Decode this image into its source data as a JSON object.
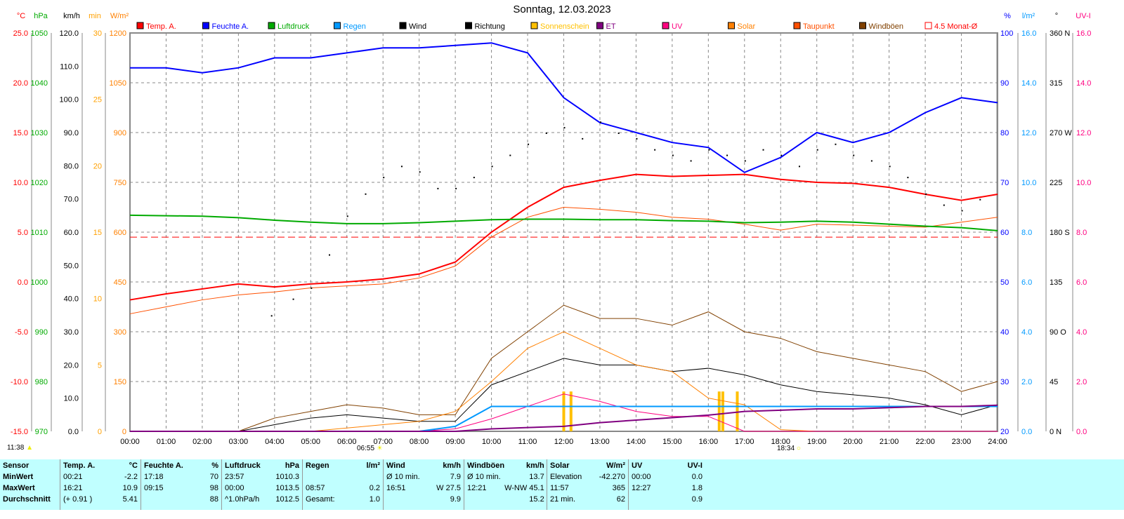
{
  "title": "Sonntag, 12.03.2023",
  "legend": [
    {
      "label": "Temp. A.",
      "color": "#ff0000"
    },
    {
      "label": "Feuchte A.",
      "color": "#0000ff"
    },
    {
      "label": "Luftdruck",
      "color": "#00aa00"
    },
    {
      "label": "Regen",
      "color": "#0099ff"
    },
    {
      "label": "Wind",
      "color": "#000000"
    },
    {
      "label": "Richtung",
      "color": "#000000"
    },
    {
      "label": "Sonnenschein",
      "color": "#ffc000"
    },
    {
      "label": "ET",
      "color": "#800080"
    },
    {
      "label": "UV",
      "color": "#ff0080"
    },
    {
      "label": "Solar",
      "color": "#ff8000"
    },
    {
      "label": "Taupunkt",
      "color": "#ff5000"
    },
    {
      "label": "Windböen",
      "color": "#804000"
    },
    {
      "label": "4.5 Monat-Ø",
      "color": "#ff0000"
    }
  ],
  "sun": {
    "left": "11:38",
    "sunrise": "06:55",
    "sunset": "18:34"
  },
  "chart_data": {
    "type": "line",
    "title": "Sonntag, 12.03.2023",
    "x_ticks": [
      "00:00",
      "01:00",
      "02:00",
      "03:00",
      "04:00",
      "05:00",
      "06:00",
      "07:00",
      "08:00",
      "09:00",
      "10:00",
      "11:00",
      "12:00",
      "13:00",
      "14:00",
      "15:00",
      "16:00",
      "17:00",
      "18:00",
      "19:00",
      "20:00",
      "21:00",
      "22:00",
      "23:00",
      "24:00"
    ],
    "axes": {
      "temp": {
        "unit": "°C",
        "range": [
          -15,
          25
        ],
        "ticks": [
          "25.0",
          "20.0",
          "15.0",
          "10.0",
          "5.0",
          "0.0",
          "-5.0",
          "-10.0",
          "-15.0"
        ],
        "color": "#ff0000"
      },
      "pressure": {
        "unit": "hPa",
        "range": [
          970,
          1050
        ],
        "ticks": [
          "1050",
          "1040",
          "1030",
          "1020",
          "1010",
          "1000",
          "990",
          "980",
          "970"
        ],
        "color": "#00aa00"
      },
      "wind": {
        "unit": "km/h",
        "range": [
          0,
          120
        ],
        "ticks": [
          "120.0",
          "110.0",
          "100.0",
          "90.0",
          "80.0",
          "70.0",
          "60.0",
          "50.0",
          "40.0",
          "30.0",
          "20.0",
          "10.0",
          "0.0"
        ],
        "color": "#000000"
      },
      "sunshine": {
        "unit": "min",
        "range": [
          0,
          30
        ],
        "ticks": [
          "30",
          "25",
          "20",
          "15",
          "10",
          "5",
          "0"
        ],
        "color": "#ffa000"
      },
      "solar": {
        "unit": "W/m²",
        "range": [
          0,
          1200
        ],
        "ticks": [
          "1200",
          "1050",
          "900",
          "750",
          "600",
          "450",
          "300",
          "150",
          "0"
        ],
        "color": "#ff8000"
      },
      "humidity": {
        "unit": "%",
        "range": [
          20,
          100
        ],
        "ticks": [
          "100",
          "90",
          "80",
          "70",
          "60",
          "50",
          "40",
          "30",
          "20"
        ],
        "color": "#0000ff"
      },
      "rain": {
        "unit": "l/m²",
        "range": [
          0,
          16
        ],
        "ticks": [
          "16.0",
          "14.0",
          "12.0",
          "10.0",
          "8.0",
          "6.0",
          "4.0",
          "2.0",
          "0.0"
        ],
        "color": "#0099ff"
      },
      "direction": {
        "unit": "°",
        "range": [
          0,
          360
        ],
        "ticks": [
          "360 N",
          "315",
          "270 W",
          "225",
          "180 S",
          "135",
          "90 O",
          "45",
          "0 N"
        ],
        "color": "#000000"
      },
      "uv": {
        "unit": "UV-I",
        "range": [
          0,
          16
        ],
        "ticks": [
          "16.0",
          "14.0",
          "12.0",
          "10.0",
          "8.0",
          "6.0",
          "4.0",
          "2.0",
          "0.0"
        ],
        "color": "#ff0080"
      }
    },
    "hours": [
      0,
      1,
      2,
      3,
      4,
      5,
      6,
      7,
      8,
      9,
      10,
      11,
      12,
      13,
      14,
      15,
      16,
      17,
      18,
      19,
      20,
      21,
      22,
      23,
      24
    ],
    "series": [
      {
        "name": "Temp. A.",
        "axis": "temp",
        "values": [
          -1.8,
          -1.2,
          -0.7,
          -0.2,
          -0.5,
          -0.2,
          0,
          0.3,
          0.8,
          2.0,
          5.0,
          7.5,
          9.5,
          10.2,
          10.8,
          10.6,
          10.7,
          10.8,
          10.3,
          10.0,
          9.9,
          9.5,
          8.8,
          8.2,
          8.8
        ]
      },
      {
        "name": "Taupunkt",
        "axis": "temp",
        "values": [
          -3.2,
          -2.5,
          -1.8,
          -1.3,
          -1.0,
          -0.6,
          -0.4,
          -0.2,
          0.4,
          1.6,
          4.5,
          6.5,
          7.5,
          7.3,
          7.0,
          6.5,
          6.3,
          5.8,
          5.2,
          5.8,
          5.7,
          5.6,
          5.5,
          6.0,
          6.5
        ]
      },
      {
        "name": "Feuchte A.",
        "axis": "humidity",
        "values": [
          93,
          93,
          92,
          93,
          95,
          95,
          96,
          97,
          97,
          97.5,
          98,
          96,
          87,
          82,
          80,
          78,
          77,
          72,
          75,
          80,
          78,
          80,
          84,
          87,
          86
        ]
      },
      {
        "name": "Luftdruck",
        "axis": "pressure",
        "values": [
          1013.4,
          1013.3,
          1013.2,
          1012.9,
          1012.4,
          1012.0,
          1011.7,
          1011.7,
          1011.9,
          1012.2,
          1012.5,
          1012.6,
          1012.6,
          1012.5,
          1012.5,
          1012.3,
          1012.2,
          1011.9,
          1012.0,
          1012.2,
          1012.0,
          1011.6,
          1011.2,
          1010.9,
          1010.3
        ]
      },
      {
        "name": "Wind",
        "axis": "wind",
        "values": [
          0,
          0,
          0,
          0,
          2,
          4,
          5,
          4,
          3,
          3,
          14,
          18,
          22,
          20,
          20,
          18,
          19,
          17,
          14,
          12,
          11,
          10,
          8,
          5,
          8
        ]
      },
      {
        "name": "Windböen",
        "axis": "wind",
        "values": [
          0,
          0,
          0,
          0,
          4,
          6,
          8,
          7,
          5,
          5,
          22,
          30,
          38,
          34,
          34,
          32,
          36,
          30,
          28,
          24,
          22,
          20,
          18,
          12,
          15
        ]
      },
      {
        "name": "Solar",
        "axis": "solar",
        "values": [
          0,
          0,
          0,
          0,
          0,
          0,
          10,
          20,
          30,
          60,
          150,
          250,
          300,
          250,
          200,
          180,
          100,
          80,
          5,
          0,
          0,
          0,
          0,
          0,
          0
        ]
      },
      {
        "name": "UV",
        "axis": "uv",
        "values": [
          0,
          0,
          0,
          0,
          0,
          0,
          0,
          0,
          0,
          0.1,
          0.5,
          1.0,
          1.5,
          1.2,
          0.8,
          0.6,
          0.6,
          0,
          0,
          0,
          0,
          0,
          0,
          0,
          0
        ]
      },
      {
        "name": "Regen",
        "axis": "rain",
        "values": [
          0,
          0,
          0,
          0,
          0,
          0,
          0,
          0,
          0,
          0.2,
          1.0,
          1.0,
          1.0,
          1.0,
          1.0,
          1.0,
          1.0,
          1.0,
          1.0,
          1.0,
          1.0,
          1.0,
          1.0,
          1.0,
          1.0
        ]
      },
      {
        "name": "ET",
        "axis": "rain",
        "values": [
          0,
          0,
          0,
          0,
          0,
          0,
          0,
          0,
          0,
          0,
          0.1,
          0.15,
          0.2,
          0.35,
          0.45,
          0.55,
          0.65,
          0.8,
          0.85,
          0.9,
          0.9,
          0.95,
          1.0,
          1.0,
          1.05
        ]
      }
    ],
    "direction_points": {
      "hours": [
        3.9,
        4.5,
        5.0,
        5.5,
        6.0,
        6.5,
        7.0,
        7.5,
        8.0,
        8.5,
        9.0,
        9.5,
        10.0,
        10.5,
        11.0,
        11.5,
        12.0,
        12.5,
        13.0,
        13.5,
        14.0,
        14.5,
        15.0,
        15.5,
        16.0,
        16.5,
        17.0,
        17.5,
        18.0,
        18.5,
        19.0,
        19.5,
        20.0,
        20.5,
        21.0,
        21.5,
        22.0,
        22.5,
        23.0,
        23.5
      ],
      "values": [
        105,
        120,
        130,
        160,
        195,
        215,
        230,
        240,
        235,
        220,
        220,
        230,
        240,
        250,
        260,
        270,
        275,
        265,
        280,
        270,
        265,
        255,
        250,
        245,
        255,
        250,
        245,
        255,
        250,
        240,
        255,
        260,
        250,
        245,
        240,
        230,
        215,
        205,
        200,
        210
      ]
    },
    "sunshine_bars": {
      "hours": [
        12.0,
        12.2,
        16.3,
        16.4,
        16.8
      ],
      "values": [
        3,
        3,
        3,
        3,
        3
      ]
    },
    "reference_line": {
      "name": "4.5 Monat-Ø",
      "axis": "temp",
      "value": 4.5
    }
  },
  "table": {
    "columns": [
      {
        "h": [
          "Sensor",
          ""
        ],
        "rows": [
          [
            "MinWert",
            ""
          ],
          [
            "MaxWert",
            ""
          ],
          [
            "Durchschnitt",
            ""
          ]
        ],
        "w": 85
      },
      {
        "h": [
          "Temp. A.",
          "°C"
        ],
        "rows": [
          [
            "00:21",
            "-2.2"
          ],
          [
            "16:21",
            "10.9"
          ],
          [
            "(+ 0.91 )",
            "5.41"
          ]
        ],
        "w": 115
      },
      {
        "h": [
          "Feuchte A.",
          "%"
        ],
        "rows": [
          [
            "17:18",
            "70"
          ],
          [
            "09:15",
            "98"
          ],
          [
            "",
            "88"
          ]
        ],
        "w": 115
      },
      {
        "h": [
          "Luftdruck",
          "hPa"
        ],
        "rows": [
          [
            "23:57",
            "1010.3"
          ],
          [
            "00:00",
            "1013.5"
          ],
          [
            "^1.0hPa/h",
            "1012.5"
          ]
        ],
        "w": 115
      },
      {
        "h": [
          "Regen",
          "l/m²"
        ],
        "rows": [
          [
            "",
            ""
          ],
          [
            "08:57",
            "0.2"
          ],
          [
            "Gesamt:",
            "1.0"
          ]
        ],
        "w": 115
      },
      {
        "h": [
          "Wind",
          "km/h"
        ],
        "rows": [
          [
            "Ø 10 min.",
            "7.9"
          ],
          [
            "16:51",
            "W 27.5"
          ],
          [
            "",
            "9.9"
          ]
        ],
        "w": 115
      },
      {
        "h": [
          "Windböen",
          "km/h"
        ],
        "rows": [
          [
            "Ø 10 min.",
            "13.7"
          ],
          [
            "12:21",
            "W-NW 45.1"
          ],
          [
            "",
            "15.2"
          ]
        ],
        "w": 118
      },
      {
        "h": [
          "Solar",
          "W/m²"
        ],
        "rows": [
          [
            "Elevation",
            "-42.270"
          ],
          [
            "11:57",
            "365"
          ],
          [
            "21 min.",
            "62"
          ]
        ],
        "w": 116
      },
      {
        "h": [
          "UV",
          "UV-I"
        ],
        "rows": [
          [
            "00:00",
            "0.0"
          ],
          [
            "12:27",
            "1.8"
          ],
          [
            "",
            "0.9"
          ]
        ],
        "w": 110
      }
    ]
  }
}
